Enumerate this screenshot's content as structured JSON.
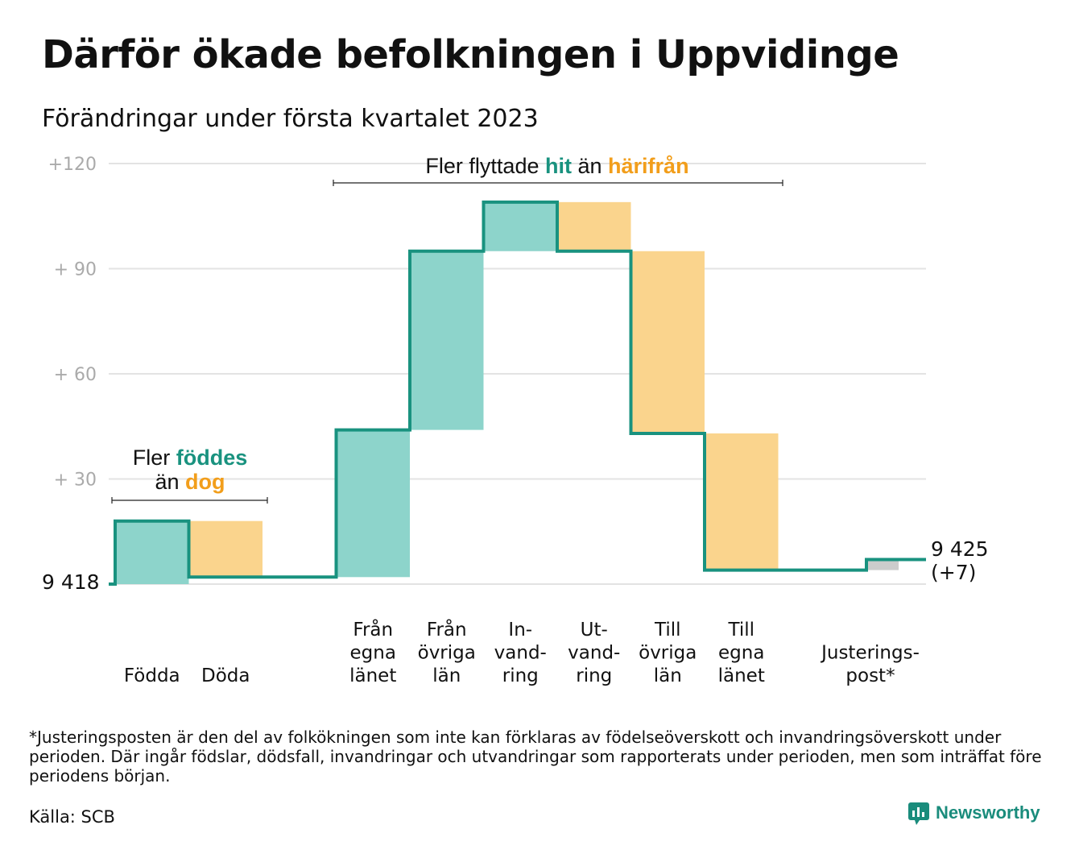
{
  "title": "Därför ökade befolkningen i Uppvidinge",
  "subtitle": "Förändringar under första kvartalet 2023",
  "colors": {
    "increase_fill": "#8dd4cb",
    "decrease_fill": "#fad48d",
    "adjustment_fill": "#cccccc",
    "line": "#19927f",
    "accent_teal": "#19927f",
    "accent_orange": "#f29e1b",
    "grid": "#e3e3e3",
    "tick_text": "#aaaaaa"
  },
  "chart_data": {
    "type": "waterfall",
    "baseline_value": 9418,
    "baseline_label": "9 418",
    "end_label": [
      "9 425",
      "(+7)"
    ],
    "y_ticks": [
      {
        "value": 30,
        "label": "+ 30"
      },
      {
        "value": 60,
        "label": "+ 60"
      },
      {
        "value": 90,
        "label": "+ 90"
      },
      {
        "value": 120,
        "label": "+120"
      }
    ],
    "ylim": [
      0,
      120
    ],
    "steps": [
      {
        "label": [
          "Födda"
        ],
        "start": 0,
        "end": 18,
        "kind": "increase"
      },
      {
        "label": [
          "Döda"
        ],
        "start": 18,
        "end": 2,
        "kind": "decrease"
      },
      {
        "label": [
          "Från",
          "egna",
          "länet"
        ],
        "start": 2,
        "end": 44,
        "kind": "increase"
      },
      {
        "label": [
          "Från",
          "övriga",
          "län"
        ],
        "start": 44,
        "end": 95,
        "kind": "increase"
      },
      {
        "label": [
          "In-",
          "vand-",
          "ring"
        ],
        "start": 95,
        "end": 109,
        "kind": "increase"
      },
      {
        "label": [
          "Ut-",
          "vand-",
          "ring"
        ],
        "start": 109,
        "end": 95,
        "kind": "decrease"
      },
      {
        "label": [
          "Till",
          "övriga",
          "län"
        ],
        "start": 95,
        "end": 43,
        "kind": "decrease"
      },
      {
        "label": [
          "Till",
          "egna",
          "länet"
        ],
        "start": 43,
        "end": 4,
        "kind": "decrease"
      },
      {
        "label": [
          "Justerings-",
          "post*"
        ],
        "start": 4,
        "end": 7,
        "kind": "adjustment"
      }
    ],
    "annotations": [
      {
        "parts": [
          {
            "text": "Fler ",
            "style": "plain"
          },
          {
            "text": "föddes",
            "style": "teal"
          }
        ],
        "parts2": [
          {
            "text": "än ",
            "style": "plain"
          },
          {
            "text": "dog",
            "style": "orange"
          }
        ]
      },
      {
        "parts": [
          {
            "text": "Fler flyttade ",
            "style": "plain"
          },
          {
            "text": "hit",
            "style": "teal"
          },
          {
            "text": " än ",
            "style": "plain"
          },
          {
            "text": "härifrån",
            "style": "orange"
          }
        ]
      }
    ]
  },
  "footnote": "*Justeringsposten är den del av folkökningen som inte kan förklaras av födelseöverskott och invandringsöverskott under perioden. Där ingår födslar, dödsfall, invandringar och utvandringar som rapporterats under perioden, men som inträffat före periodens början.",
  "source": "Källa: SCB",
  "logo": {
    "text": "Newsworthy",
    "icon": "newsworthy-logo-icon"
  }
}
